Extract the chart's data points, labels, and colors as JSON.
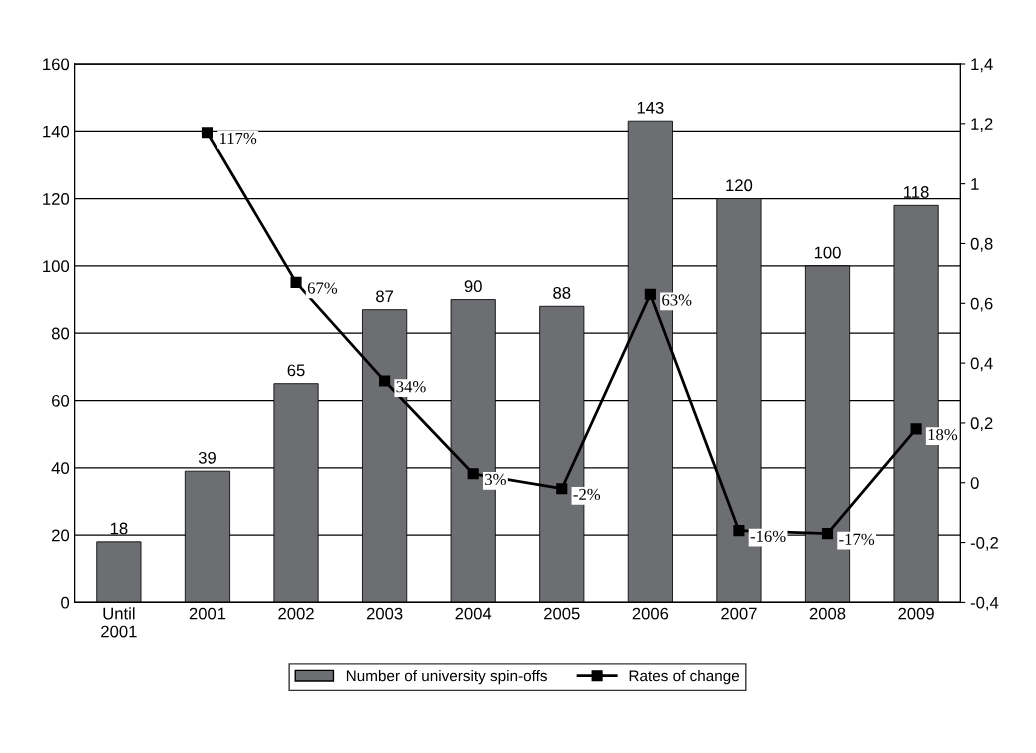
{
  "chart_data": {
    "type": "bar",
    "categories": [
      "Until\n2001",
      "2001",
      "2002",
      "2003",
      "2004",
      "2005",
      "2006",
      "2007",
      "2008",
      "2009"
    ],
    "series": [
      {
        "name": "Number of university spin-offs",
        "color": "#6d6e71",
        "values": [
          18,
          39,
          65,
          87,
          90,
          88,
          143,
          120,
          100,
          118
        ],
        "data_labels": true
      },
      {
        "name": "Rates of change",
        "type": "line",
        "axis": "y2",
        "color": "#000000",
        "marker": "square",
        "line_style": "solid",
        "values": [
          null,
          1.17,
          0.67,
          0.34,
          0.03,
          -0.02,
          0.63,
          -0.16,
          -0.17,
          0.18
        ],
        "value_labels": [
          null,
          "117%",
          "67%",
          "34%",
          "3%",
          "-2%",
          "63%",
          "-16%",
          "-17%",
          "18%"
        ]
      }
    ],
    "ylim": [
      0,
      160
    ],
    "yticks": [
      0,
      20,
      40,
      60,
      80,
      100,
      120,
      140,
      160
    ],
    "y2lim": [
      -0.4,
      1.4
    ],
    "y2ticks": [
      {
        "value": -0.4,
        "label": "-0,4"
      },
      {
        "value": -0.2,
        "label": "-0,2"
      },
      {
        "value": 0,
        "label": "0"
      },
      {
        "value": 0.2,
        "label": "0,2"
      },
      {
        "value": 0.4,
        "label": "0,4"
      },
      {
        "value": 0.6,
        "label": "0,6"
      },
      {
        "value": 0.8,
        "label": "0,8"
      },
      {
        "value": 1,
        "label": "1"
      },
      {
        "value": 1.2,
        "label": "1,2"
      },
      {
        "value": 1.4,
        "label": "1,4"
      }
    ],
    "grid": "y",
    "legend": "bottom"
  }
}
